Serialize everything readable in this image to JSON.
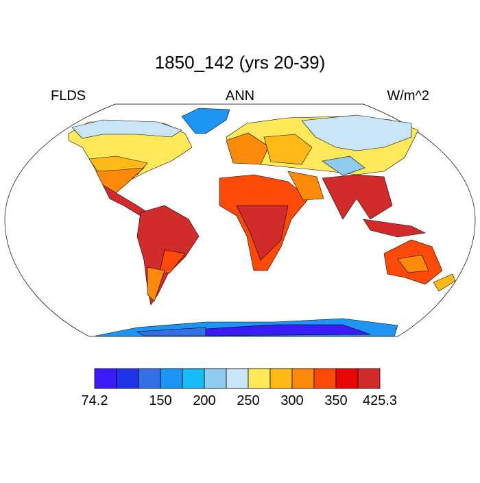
{
  "title": "1850_142 (yrs 20-39)",
  "left_label": "FLDS",
  "center_label": "ANN",
  "right_label": "W/m^2",
  "colorbar": {
    "colors": [
      "#3b1cf8",
      "#1f34e8",
      "#3370e8",
      "#1e95f2",
      "#15bcf7",
      "#8ecbee",
      "#c9e5f7",
      "#ffe95b",
      "#ffba18",
      "#fd8a0a",
      "#fe4a08",
      "#e90503",
      "#d12b2c"
    ],
    "labels": [
      "74.2",
      null,
      null,
      "150",
      null,
      "200",
      null,
      "250",
      null,
      "300",
      null,
      "350",
      null,
      "425.3"
    ]
  }
}
